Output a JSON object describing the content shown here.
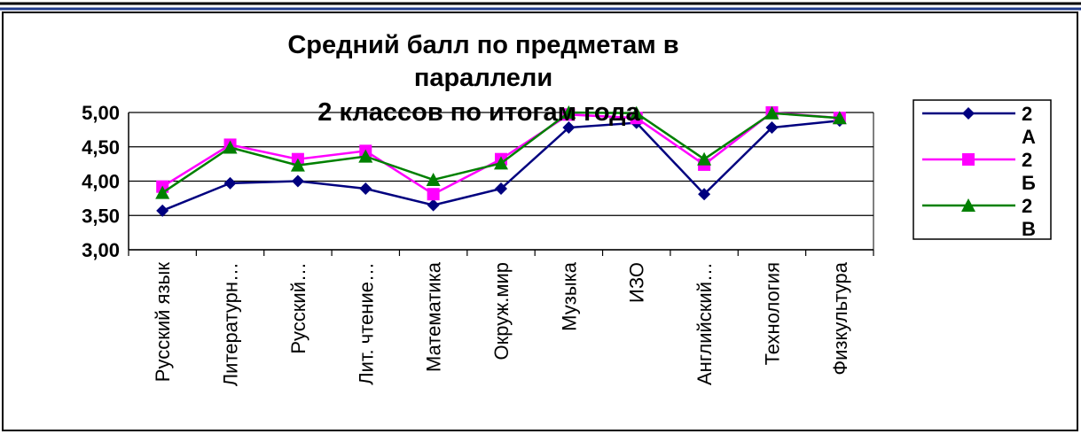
{
  "chart_data": {
    "type": "line",
    "title_lines": [
      "Средний балл по предметам в",
      "параллели",
      "2 классов  по итогам года"
    ],
    "categories": [
      "Русский язык",
      "Литературн…",
      "Русский…",
      "Лит. чтение…",
      "Математика",
      "Окруж.мир",
      "Музыка",
      "ИЗО",
      "Английский…",
      "Технология",
      "Физкультура"
    ],
    "ylim": [
      3.0,
      5.0
    ],
    "yticks": [
      "5,00",
      "4,50",
      "4,00",
      "3,50",
      "3,00"
    ],
    "grid": true,
    "legend_position": "right",
    "series": [
      {
        "name_lines": [
          "2",
          "А"
        ],
        "color": "#00007f",
        "marker": "diamond",
        "values": [
          3.57,
          3.97,
          4.0,
          3.89,
          3.65,
          3.89,
          4.78,
          4.85,
          3.81,
          4.78,
          4.88
        ]
      },
      {
        "name_lines": [
          "2",
          "Б"
        ],
        "color": "#ff00ff",
        "marker": "square",
        "values": [
          3.92,
          4.53,
          4.32,
          4.44,
          3.81,
          4.32,
          4.97,
          4.92,
          4.24,
          5.0,
          4.92
        ]
      },
      {
        "name_lines": [
          "2",
          "В"
        ],
        "color": "#008000",
        "marker": "triangle",
        "values": [
          3.83,
          4.49,
          4.23,
          4.36,
          4.02,
          4.26,
          5.0,
          4.99,
          4.32,
          4.99,
          4.92
        ]
      }
    ]
  }
}
